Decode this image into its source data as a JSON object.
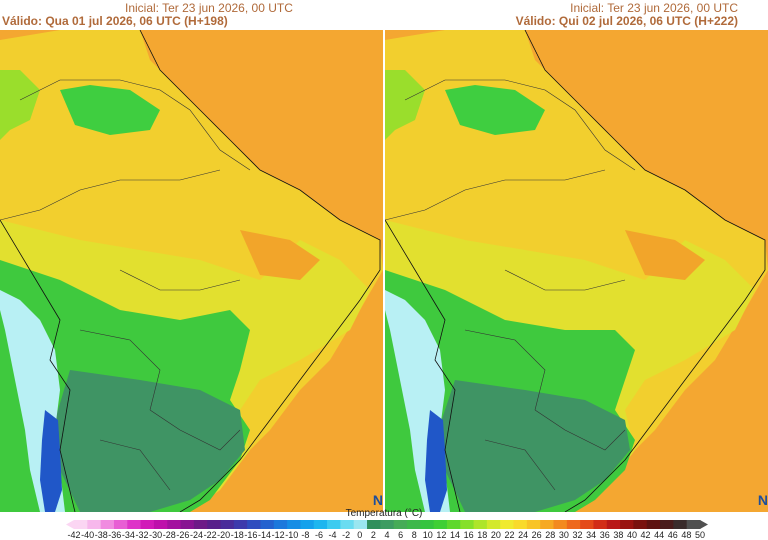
{
  "panels": [
    {
      "initial": "Inicial: Ter 23 jun 2026, 00 UTC",
      "valid": "Válido: Qua 01 jul 2026, 06 UTC (H+198)"
    },
    {
      "initial": "Inicial: Ter 23 jun 2026, 00 UTC",
      "valid": "Válido: Qui 02 jul 2026, 06 UTC (H+222)"
    }
  ],
  "logo": "N",
  "legend": {
    "title": "Temperatura (°C)",
    "ticks": [
      "-42",
      "-40",
      "-38",
      "-36",
      "-34",
      "-32",
      "-30",
      "-28",
      "-26",
      "-24",
      "-22",
      "-20",
      "-18",
      "-16",
      "-14",
      "-12",
      "-10",
      "-8",
      "-6",
      "-4",
      "-2",
      "0",
      "2",
      "4",
      "6",
      "8",
      "10",
      "12",
      "14",
      "16",
      "18",
      "20",
      "22",
      "24",
      "26",
      "28",
      "30",
      "32",
      "34",
      "36",
      "38",
      "40",
      "42",
      "44",
      "46",
      "48",
      "50"
    ],
    "colors": [
      "#fbd6f3",
      "#f7b8ec",
      "#f08be0",
      "#e85ed4",
      "#de34c8",
      "#d11ab8",
      "#be10ab",
      "#a3109f",
      "#881492",
      "#6d1a87",
      "#581f8a",
      "#4a2c9a",
      "#3d3aac",
      "#2f4dbf",
      "#2462cf",
      "#1c78dc",
      "#168de5",
      "#14a1ec",
      "#1db6ef",
      "#3ccbf0",
      "#6adcf1",
      "#9ae6f0",
      "#2f8f5c",
      "#3d9c62",
      "#46ab57",
      "#3eb84b",
      "#35c43f",
      "#3fcf35",
      "#5ed82d",
      "#86e02a",
      "#aee52a",
      "#d3e92c",
      "#f0ea2f",
      "#f9da2b",
      "#f8c427",
      "#f6a923",
      "#f38a1f",
      "#ee691c",
      "#e44a1a",
      "#d22d18",
      "#b91818",
      "#9a1410",
      "#7a120e",
      "#5e1210",
      "#4a1c1c",
      "#3a2c2c",
      "#505050"
    ]
  }
}
